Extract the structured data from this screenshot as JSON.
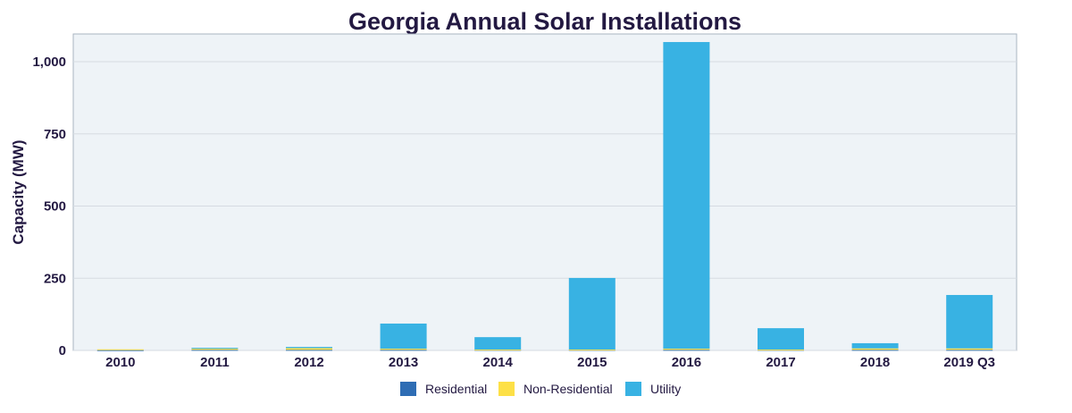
{
  "chart_data": {
    "type": "bar",
    "stacked": true,
    "title": "Georgia Annual Solar Installations",
    "xlabel": "",
    "ylabel": "Capacity (MW)",
    "ylim": [
      0,
      1100
    ],
    "yticks": [
      0,
      250,
      500,
      750,
      1000
    ],
    "ytick_labels": [
      "0",
      "250",
      "500",
      "750",
      "1,000"
    ],
    "grid": true,
    "legend_position": "bottom",
    "categories": [
      "2010",
      "2011",
      "2012",
      "2013",
      "2014",
      "2015",
      "2016",
      "2017",
      "2018",
      "2019 Q3"
    ],
    "series": [
      {
        "name": "Residential",
        "color": "#2e6db4",
        "values": [
          1,
          2,
          2,
          2,
          2,
          2,
          2,
          2,
          2,
          2
        ]
      },
      {
        "name": "Non-Residential",
        "color": "#fde047",
        "values": [
          3,
          5,
          6,
          4,
          1,
          1,
          4,
          1,
          5,
          5
        ]
      },
      {
        "name": "Utility",
        "color": "#38b2e3",
        "values": [
          0,
          2,
          4,
          87,
          43,
          248,
          1062,
          74,
          18,
          185
        ]
      }
    ],
    "colors": {
      "plot_background": "#eef3f7",
      "grid": "#d5dbe2",
      "text": "#231942"
    }
  }
}
